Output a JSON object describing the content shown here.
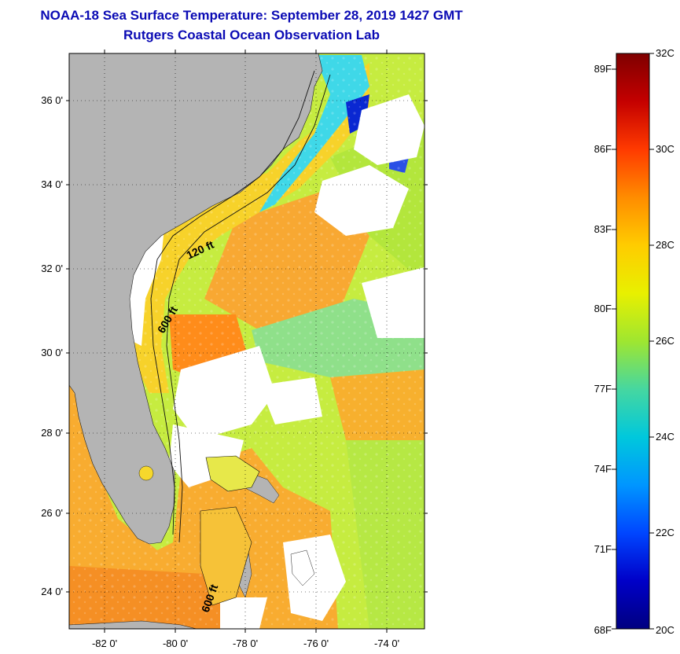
{
  "header": {
    "line1": "NOAA-18 Sea Surface Temperature:  September 28, 2019 1427 GMT",
    "line2": "Rutgers Coastal Ocean Observation Lab"
  },
  "map": {
    "lat_labels": [
      "36 0'",
      "34 0'",
      "32 0'",
      "30 0'",
      "28 0'",
      "26 0'",
      "24 0'"
    ],
    "lon_labels": [
      "-82 0'",
      "-80 0'",
      "-78 0'",
      "-76 0'",
      "-74 0'"
    ],
    "contour_labels": [
      "120 ft",
      "600 ft",
      "600 ft"
    ]
  },
  "colorbar": {
    "fahrenheit_labels": [
      "89F",
      "86F",
      "83F",
      "80F",
      "77F",
      "74F",
      "71F",
      "68F"
    ],
    "celsius_labels": [
      "32C",
      "30C",
      "28C",
      "26C",
      "24C",
      "22C",
      "20C"
    ],
    "stops": [
      "#7f0000",
      "#c40000",
      "#ff3a00",
      "#ff8c00",
      "#ffcc00",
      "#e8f000",
      "#9fe630",
      "#46d7a0",
      "#00c8dc",
      "#0096ff",
      "#0046ff",
      "#0000c8",
      "#000080"
    ]
  },
  "colors": {
    "land": "#b4b4b4",
    "cloud": "#ffffff",
    "warm": "#f7a330",
    "mid": "#f6d82c",
    "cool": "#a9e64a",
    "cyan": "#3fd8e8",
    "title": "#0a0ab4"
  }
}
